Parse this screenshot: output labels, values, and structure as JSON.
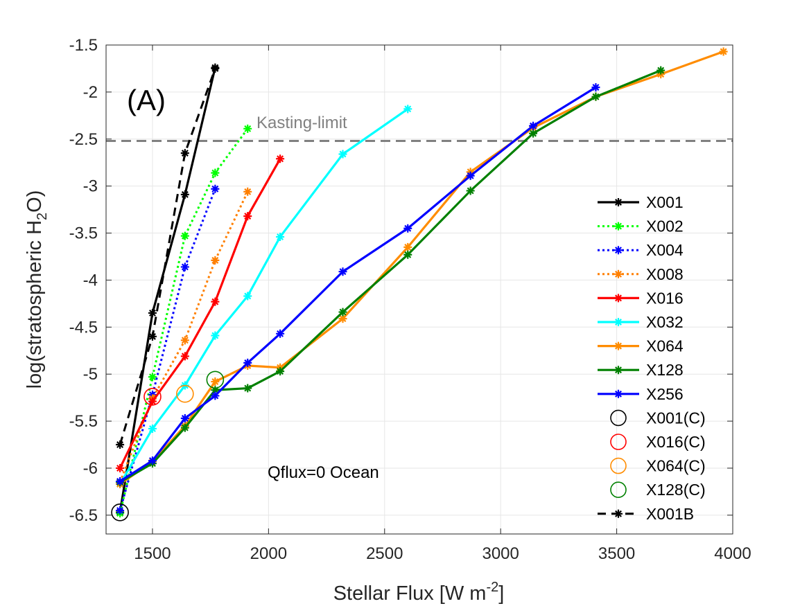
{
  "chart_data": {
    "type": "line",
    "panel_label": "(A)",
    "title": "",
    "xlabel": "Stellar Flux [W m",
    "xlabel_sup": "-2",
    "xlabel_end": "]",
    "ylabel_pre": "log(stratospheric H",
    "ylabel_sub": "2",
    "ylabel_post": "O)",
    "xlim": [
      1300,
      4000
    ],
    "ylim": [
      -6.7,
      -1.5
    ],
    "xticks": [
      1500,
      2000,
      2500,
      3000,
      3500,
      4000
    ],
    "yticks": [
      -1.5,
      -2,
      -2.5,
      -3,
      -3.5,
      -4,
      -4.5,
      -5,
      -5.5,
      -6,
      -6.5
    ],
    "xtick_labels": [
      "1500",
      "2000",
      "2500",
      "3000",
      "3500",
      "4000"
    ],
    "ytick_labels": [
      "-1.5",
      "-2",
      "-2.5",
      "-3",
      "-3.5",
      "-4",
      "-4.5",
      "-5",
      "-5.5",
      "-6",
      "-6.5"
    ],
    "grid": true,
    "reference_line": {
      "label": "Kasting-limit",
      "y": -2.52,
      "color": "#808080"
    },
    "annotation": "Qflux=0 Ocean",
    "legend_position": "right",
    "series": [
      {
        "name": "X001",
        "color": "#000000",
        "dash": "solid",
        "x": [
          1360,
          1500,
          1640,
          1770
        ],
        "y": [
          -6.47,
          -4.35,
          -3.09,
          -1.74
        ]
      },
      {
        "name": "X002",
        "color": "#00ff00",
        "dash": "dotted",
        "x": [
          1360,
          1500,
          1640,
          1770,
          1910
        ],
        "y": [
          -6.48,
          -5.03,
          -3.53,
          -2.86,
          -2.39
        ]
      },
      {
        "name": "X004",
        "color": "#0000ff",
        "dash": "dotted",
        "x": [
          1360,
          1500,
          1640,
          1770
        ],
        "y": [
          -6.45,
          -5.22,
          -3.86,
          -3.03
        ]
      },
      {
        "name": "X008",
        "color": "#ff7f00",
        "dash": "dotted",
        "x": [
          1360,
          1500,
          1640,
          1770,
          1910
        ],
        "y": [
          -6.15,
          -5.26,
          -4.64,
          -3.79,
          -3.06
        ]
      },
      {
        "name": "X016",
        "color": "#ff0000",
        "dash": "solid",
        "x": [
          1360,
          1500,
          1640,
          1770,
          1910,
          2050
        ],
        "y": [
          -6.0,
          -5.29,
          -4.81,
          -4.23,
          -3.32,
          -2.71
        ]
      },
      {
        "name": "X032",
        "color": "#00ffff",
        "dash": "solid",
        "x": [
          1360,
          1500,
          1640,
          1770,
          1910,
          2050,
          2320,
          2600
        ],
        "y": [
          -6.17,
          -5.58,
          -5.12,
          -4.59,
          -4.17,
          -3.54,
          -2.66,
          -2.18
        ]
      },
      {
        "name": "X064",
        "color": "#ff8c00",
        "dash": "solid",
        "x": [
          1360,
          1500,
          1640,
          1770,
          1910,
          2050,
          2320,
          2600,
          2870,
          3140,
          3410,
          3690,
          3960
        ],
        "y": [
          -6.17,
          -5.93,
          -5.55,
          -5.08,
          -4.91,
          -4.93,
          -4.41,
          -3.65,
          -2.85,
          -2.38,
          -2.05,
          -1.81,
          -1.57
        ]
      },
      {
        "name": "X128",
        "color": "#008000",
        "dash": "solid",
        "x": [
          1360,
          1500,
          1640,
          1770,
          1910,
          2050,
          2320,
          2600,
          2870,
          3140,
          3410,
          3690
        ],
        "y": [
          -6.15,
          -5.95,
          -5.57,
          -5.17,
          -5.15,
          -4.97,
          -4.34,
          -3.73,
          -3.05,
          -2.44,
          -2.05,
          -1.77
        ]
      },
      {
        "name": "X256",
        "color": "#0000ff",
        "dash": "solid",
        "x": [
          1360,
          1500,
          1640,
          1770,
          1910,
          2050,
          2320,
          2600,
          2870,
          3140,
          3410
        ],
        "y": [
          -6.14,
          -5.92,
          -5.47,
          -5.23,
          -4.88,
          -4.57,
          -3.91,
          -3.45,
          -2.89,
          -2.36,
          -1.95
        ]
      },
      {
        "name": "X001B",
        "color": "#000000",
        "dash": "dashed",
        "x": [
          1360,
          1500,
          1640,
          1770
        ],
        "y": [
          -5.75,
          -4.6,
          -2.65,
          -1.75
        ]
      }
    ],
    "circles": [
      {
        "name": "X001(C)",
        "color": "#000000",
        "x": 1360,
        "y": -6.47
      },
      {
        "name": "X016(C)",
        "color": "#ff0000",
        "x": 1500,
        "y": -5.24
      },
      {
        "name": "X064(C)",
        "color": "#ff8c00",
        "x": 1640,
        "y": -5.21
      },
      {
        "name": "X128(C)",
        "color": "#008000",
        "x": 1770,
        "y": -5.06
      }
    ],
    "legend": [
      {
        "label": "X001",
        "kind": "line",
        "color": "#000000",
        "dash": "solid"
      },
      {
        "label": "X002",
        "kind": "line",
        "color": "#00ff00",
        "dash": "dotted"
      },
      {
        "label": "X004",
        "kind": "line",
        "color": "#0000ff",
        "dash": "dotted"
      },
      {
        "label": "X008",
        "kind": "line",
        "color": "#ff7f00",
        "dash": "dotted"
      },
      {
        "label": "X016",
        "kind": "line",
        "color": "#ff0000",
        "dash": "solid"
      },
      {
        "label": "X032",
        "kind": "line",
        "color": "#00ffff",
        "dash": "solid"
      },
      {
        "label": "X064",
        "kind": "line",
        "color": "#ff8c00",
        "dash": "solid"
      },
      {
        "label": "X128",
        "kind": "line",
        "color": "#008000",
        "dash": "solid"
      },
      {
        "label": "X256",
        "kind": "line",
        "color": "#0000ff",
        "dash": "solid"
      },
      {
        "label": "X001(C)",
        "kind": "circle",
        "color": "#000000"
      },
      {
        "label": "X016(C)",
        "kind": "circle",
        "color": "#ff0000"
      },
      {
        "label": "X064(C)",
        "kind": "circle",
        "color": "#ff8c00"
      },
      {
        "label": "X128(C)",
        "kind": "circle",
        "color": "#008000"
      },
      {
        "label": "X001B",
        "kind": "line",
        "color": "#000000",
        "dash": "dashed"
      }
    ]
  }
}
